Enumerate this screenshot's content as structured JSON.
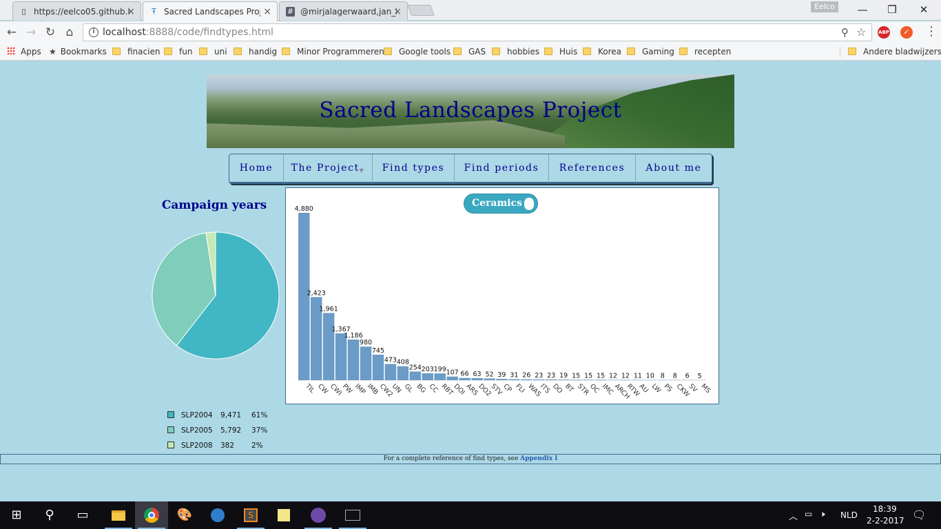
{
  "browser": {
    "tabs": [
      {
        "label": "https://eelco05.github.io",
        "icon": "page-icon"
      },
      {
        "label": "Sacred Landscapes Proje",
        "icon": "site-icon",
        "active": true
      },
      {
        "label": "@mirjalagerwaard,jan_hu",
        "icon": "slack-hash-icon"
      }
    ],
    "profile": "Eelco",
    "url_host": "localhost",
    "url_path": ":8888/code/findtypes.html",
    "bookmarks": [
      "Apps",
      "Bookmarks",
      "finacien",
      "fun",
      "uni",
      "handig",
      "Minor Programmeren",
      "Google tools",
      "GAS",
      "hobbies",
      "Huis",
      "Korea",
      "Gaming",
      "recepten"
    ],
    "other_bookmarks": "Andere bladwijzers"
  },
  "page": {
    "banner_title": "Sacred Landscapes Project",
    "menu": [
      "Home",
      "The Project",
      "Find types",
      "Find periods",
      "References",
      "About me"
    ],
    "campaign_title": "Campaign years",
    "toggle_label": "Ceramics",
    "footer_text": "For a complete reference of find types, see ",
    "footer_link": "Appendix I"
  },
  "colors": {
    "pie": [
      "#41b6c4",
      "#7fcdbb",
      "#c7e9b4"
    ],
    "bar": "#6b9bc7",
    "title": "#00008b",
    "bg": "#add8e6"
  },
  "chart_data": [
    {
      "type": "pie",
      "title": "Campaign years",
      "series": [
        {
          "name": "SLP2004",
          "value": 9471,
          "value_label": "9,471",
          "percent": "61%"
        },
        {
          "name": "SLP2005",
          "value": 5792,
          "value_label": "5,792",
          "percent": "37%"
        },
        {
          "name": "SLP2008",
          "value": 382,
          "value_label": "382",
          "percent": "2%"
        }
      ]
    },
    {
      "type": "bar",
      "categories": [
        "TIL",
        "CW",
        "CWI",
        "PW",
        "IMP",
        "IMB",
        "CW2",
        "UN",
        "GL",
        "BG",
        "CC",
        "RBT",
        "DOI",
        "ARS",
        "DO2",
        "STV",
        "CP",
        "FLI",
        "WAS",
        "ITS",
        "DO",
        "BT",
        "STR",
        "OC",
        "IMC",
        "ARCH",
        "RTW",
        "AU",
        "LW",
        "PS",
        "CKW",
        "SV",
        "MS"
      ],
      "values": [
        4880,
        2423,
        1961,
        1367,
        1186,
        980,
        745,
        473,
        408,
        254,
        203,
        199,
        107,
        66,
        63,
        52,
        39,
        31,
        26,
        23,
        23,
        19,
        15,
        15,
        15,
        12,
        12,
        11,
        10,
        8,
        8,
        6,
        5
      ],
      "labels": [
        "4,880",
        "2,423",
        "1,961",
        "1,367",
        "1,186",
        "980",
        "745",
        "473",
        "408",
        "254",
        "203",
        "199",
        "107",
        "66",
        "63",
        "52",
        "39",
        "31",
        "26",
        "23",
        "23",
        "19",
        "15",
        "15",
        "15",
        "12",
        "12",
        "11",
        "10",
        "8",
        "8",
        "6",
        "5"
      ]
    }
  ],
  "taskbar": {
    "lang": "NLD",
    "time": "18:39",
    "date": "2-2-2017"
  }
}
